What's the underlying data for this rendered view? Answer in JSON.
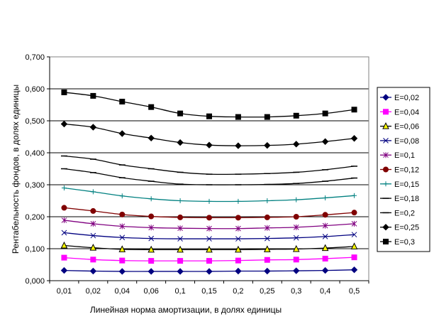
{
  "chart_data": {
    "type": "line",
    "title": "",
    "xlabel": "Линейная норма амортизации, в долях единицы",
    "ylabel": "Рентабельность фондов, в долях единицы",
    "categories": [
      "0,01",
      "0,02",
      "0,04",
      "0,06",
      "0,1",
      "0,15",
      "0,2",
      "0,25",
      "0,3",
      "0,4",
      "0,5"
    ],
    "ylim": [
      0,
      0.7
    ],
    "yticks": [
      "0,000",
      "0,100",
      "0,200",
      "0,300",
      "0,400",
      "0,500",
      "0,600",
      "0,700"
    ],
    "grid": "horizontal",
    "legend_position": "right",
    "series": [
      {
        "name": "E=0,02",
        "color": "#000080",
        "marker": "diamond",
        "fill": "#000080",
        "values": [
          0.032,
          0.03,
          0.029,
          0.029,
          0.029,
          0.029,
          0.03,
          0.03,
          0.031,
          0.032,
          0.034
        ]
      },
      {
        "name": "E=0,04",
        "color": "#ff00ff",
        "marker": "square",
        "fill": "#ff00ff",
        "values": [
          0.072,
          0.066,
          0.063,
          0.062,
          0.062,
          0.062,
          0.063,
          0.065,
          0.066,
          0.069,
          0.073
        ]
      },
      {
        "name": "E=0,06",
        "color": "#000000",
        "marker": "triangle",
        "fill": "#ffff00",
        "values": [
          0.11,
          0.103,
          0.098,
          0.097,
          0.097,
          0.097,
          0.097,
          0.098,
          0.099,
          0.102,
          0.107
        ]
      },
      {
        "name": "E=0,08",
        "color": "#000080",
        "marker": "x",
        "fill": "none",
        "values": [
          0.15,
          0.141,
          0.135,
          0.132,
          0.131,
          0.131,
          0.131,
          0.132,
          0.134,
          0.138,
          0.144
        ]
      },
      {
        "name": "E=0,1",
        "color": "#800080",
        "marker": "star",
        "fill": "none",
        "values": [
          0.189,
          0.178,
          0.17,
          0.166,
          0.164,
          0.163,
          0.163,
          0.165,
          0.167,
          0.172,
          0.178
        ]
      },
      {
        "name": "E=0,12",
        "color": "#800000",
        "marker": "circle",
        "fill": "#800000",
        "values": [
          0.228,
          0.218,
          0.207,
          0.201,
          0.198,
          0.197,
          0.197,
          0.198,
          0.2,
          0.206,
          0.213
        ]
      },
      {
        "name": "E=0,15",
        "color": "#008080",
        "marker": "plus",
        "fill": "none",
        "values": [
          0.29,
          0.278,
          0.265,
          0.256,
          0.25,
          0.248,
          0.248,
          0.25,
          0.253,
          0.259,
          0.266
        ]
      },
      {
        "name": "E=0,18",
        "color": "#000000",
        "marker": "dash",
        "fill": "none",
        "values": [
          0.35,
          0.338,
          0.322,
          0.311,
          0.302,
          0.3,
          0.3,
          0.301,
          0.304,
          0.311,
          0.321
        ]
      },
      {
        "name": "E=0,2",
        "color": "#000000",
        "marker": "dash",
        "fill": "none",
        "values": [
          0.39,
          0.38,
          0.362,
          0.35,
          0.339,
          0.333,
          0.333,
          0.335,
          0.339,
          0.347,
          0.358
        ]
      },
      {
        "name": "E=0,25",
        "color": "#000000",
        "marker": "diamond",
        "fill": "#000000",
        "values": [
          0.49,
          0.48,
          0.46,
          0.446,
          0.432,
          0.424,
          0.422,
          0.423,
          0.427,
          0.435,
          0.445
        ]
      },
      {
        "name": "E=0,3",
        "color": "#000000",
        "marker": "square",
        "fill": "#000000",
        "values": [
          0.589,
          0.578,
          0.56,
          0.543,
          0.523,
          0.514,
          0.512,
          0.512,
          0.516,
          0.523,
          0.535
        ]
      }
    ]
  }
}
